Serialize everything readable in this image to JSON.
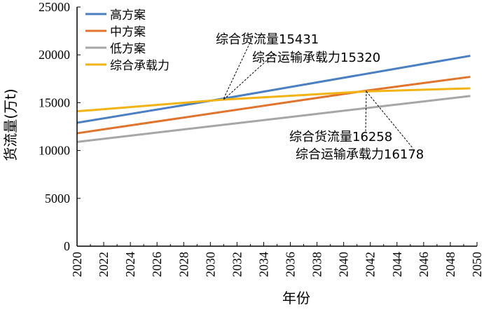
{
  "chart_data": {
    "type": "line",
    "title": "",
    "xlabel": "年份",
    "ylabel": "货流量(万t)",
    "xlim": [
      2020,
      2050
    ],
    "ylim": [
      0,
      25000
    ],
    "x_ticks": [
      "2020",
      "2022",
      "2024",
      "2026",
      "2028",
      "2030",
      "2032",
      "2034",
      "2036",
      "2038",
      "2040",
      "2042",
      "2044",
      "2046",
      "2048",
      "2050"
    ],
    "y_ticks": [
      "0",
      "5000",
      "10000",
      "15000",
      "20000",
      "25000"
    ],
    "legend_position": "top-left",
    "series": [
      {
        "name": "高方案",
        "color": "#4a7fc1",
        "x": [
          2020,
          2031,
          2049.5
        ],
        "values": [
          12900,
          15431,
          19900
        ]
      },
      {
        "name": "中方案",
        "color": "#e0742c",
        "x": [
          2020,
          2041.7,
          2049.5
        ],
        "values": [
          11800,
          16258,
          17700
        ]
      },
      {
        "name": "低方案",
        "color": "#a6a6a6",
        "x": [
          2020,
          2049.5
        ],
        "values": [
          10900,
          15700
        ]
      },
      {
        "name": "综合承载力",
        "color": "#f2b315",
        "x": [
          2020,
          2031,
          2041.7,
          2049.5
        ],
        "values": [
          14100,
          15320,
          16178,
          16500
        ]
      }
    ],
    "annotations": [
      {
        "text": "综合货流量15431",
        "x": 2031,
        "y": 15431
      },
      {
        "text": "综合运输承载力15320",
        "x": 2031,
        "y": 15320
      },
      {
        "text": "综合货流量16258",
        "x": 2041.7,
        "y": 16258
      },
      {
        "text": "综合运输承载力16178",
        "x": 2041.7,
        "y": 16178
      }
    ]
  }
}
